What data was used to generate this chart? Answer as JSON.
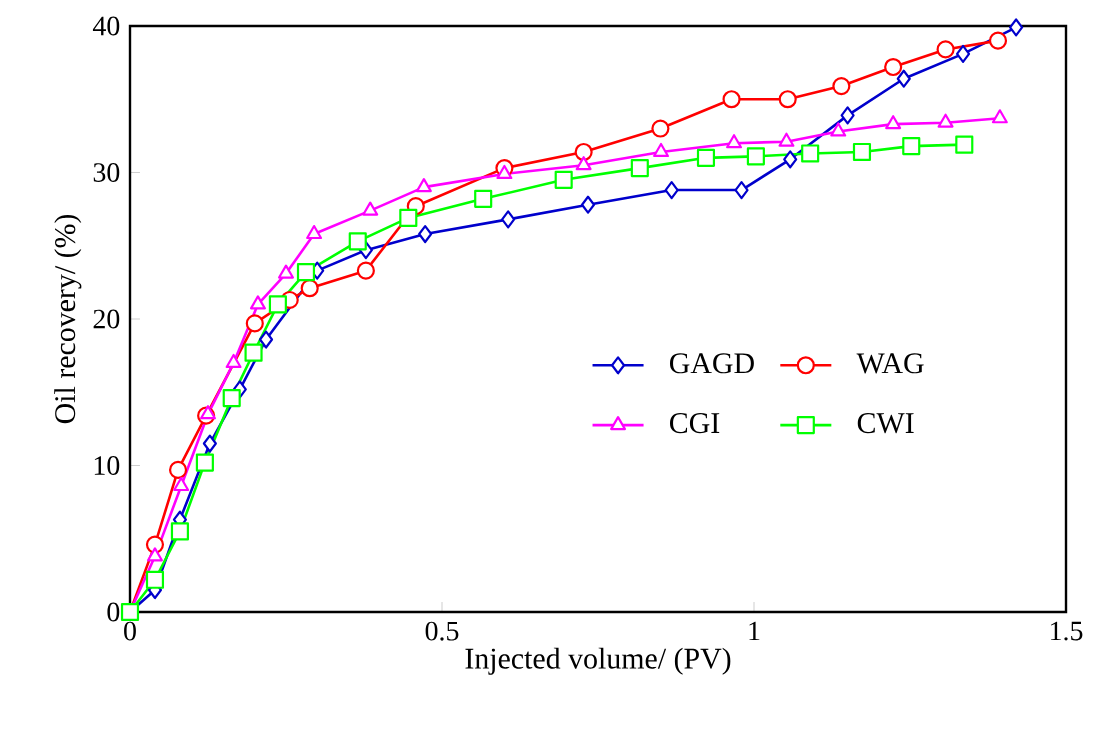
{
  "chart_data": {
    "type": "line",
    "xlabel": "Injected volume/ (PV)",
    "ylabel": "Oil recovery/ (%)",
    "xlim": [
      0,
      1.5
    ],
    "xticks": [
      0,
      0.5,
      1,
      1.5
    ],
    "ylim": [
      0,
      40
    ],
    "yticks": [
      0,
      10,
      20,
      30,
      40
    ],
    "legend": "right",
    "series": [
      {
        "name": "GAGD",
        "color": "#0000cc",
        "marker": "diamond",
        "x": [
          0,
          0.04,
          0.08,
          0.128,
          0.176,
          0.218,
          0.3,
          0.378,
          0.473,
          0.606,
          0.734,
          0.868,
          0.98,
          1.058,
          1.15,
          1.24,
          1.335,
          1.42
        ],
        "values": [
          0,
          1.5,
          6.3,
          11.5,
          15.2,
          18.6,
          23.3,
          24.7,
          25.8,
          26.8,
          27.8,
          28.8,
          28.8,
          30.9,
          33.9,
          36.4,
          38.1,
          39.9
        ]
      },
      {
        "name": "WAG",
        "color": "#ff0000",
        "marker": "circle",
        "x": [
          0,
          0.04,
          0.077,
          0.122,
          0.2,
          0.256,
          0.288,
          0.378,
          0.458,
          0.6,
          0.727,
          0.85,
          0.964,
          1.054,
          1.14,
          1.223,
          1.307,
          1.391
        ],
        "values": [
          0,
          4.6,
          9.7,
          13.4,
          19.7,
          21.3,
          22.1,
          23.3,
          27.7,
          30.3,
          31.4,
          33.0,
          35.0,
          35.0,
          35.9,
          37.2,
          38.4,
          39.0
        ]
      },
      {
        "name": "CGI",
        "color": "#ff00ff",
        "marker": "triangle",
        "x": [
          0,
          0.04,
          0.082,
          0.125,
          0.166,
          0.205,
          0.25,
          0.295,
          0.385,
          0.471,
          0.6,
          0.727,
          0.851,
          0.968,
          1.052,
          1.135,
          1.223,
          1.307,
          1.394
        ],
        "values": [
          0,
          3.8,
          8.6,
          13.5,
          17,
          21,
          23.1,
          25.8,
          27.4,
          29.0,
          29.9,
          30.5,
          31.4,
          32,
          32.1,
          32.8,
          33.3,
          33.4,
          33.7
        ]
      },
      {
        "name": "CWI",
        "color": "#00ff00",
        "marker": "square",
        "x": [
          0,
          0.04,
          0.08,
          0.12,
          0.163,
          0.198,
          0.237,
          0.282,
          0.365,
          0.446,
          0.566,
          0.695,
          0.817,
          0.923,
          1.003,
          1.09,
          1.173,
          1.252,
          1.337
        ],
        "values": [
          0,
          2.2,
          5.5,
          10.2,
          14.6,
          17.7,
          21,
          23.2,
          25.3,
          26.9,
          28.2,
          29.5,
          30.3,
          31.0,
          31.1,
          31.3,
          31.4,
          31.8,
          31.9
        ]
      }
    ]
  }
}
